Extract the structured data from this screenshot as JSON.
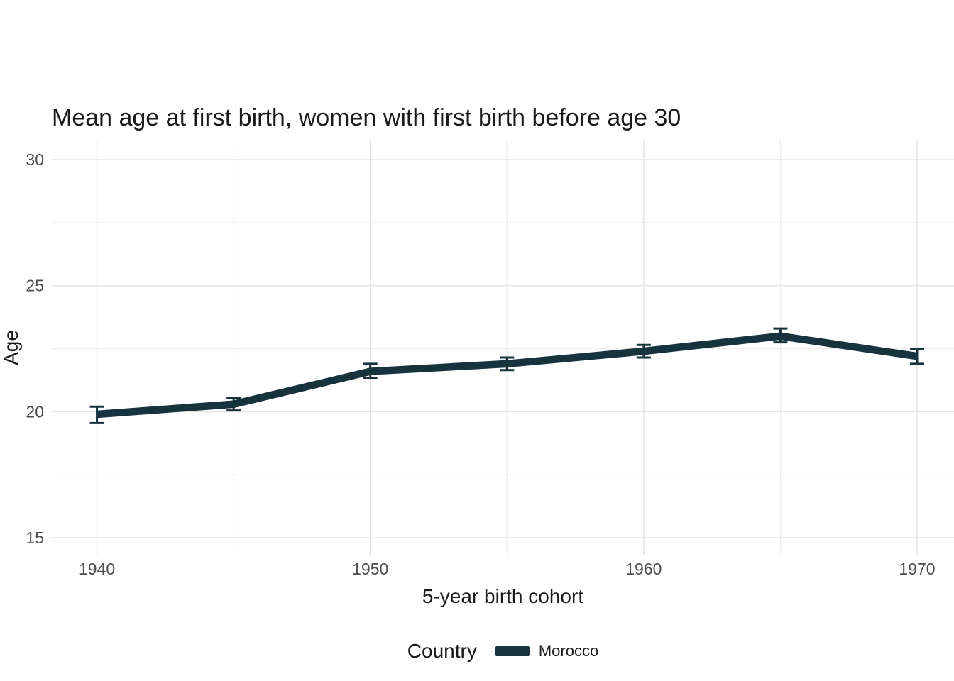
{
  "title": "Mean age at first birth, women with first birth before age 30",
  "axes": {
    "x_title": "5-year birth cohort",
    "y_title": "Age"
  },
  "legend": {
    "title": "Country",
    "items": [
      {
        "label": "Morocco",
        "color": "#17333e"
      }
    ]
  },
  "colors": {
    "series": "#17333e",
    "grid_major": "#e4e4e4",
    "grid_minor": "#ebebeb",
    "tick_label": "#4d4d4d",
    "background": "#ffffff"
  },
  "chart_data": {
    "type": "line",
    "title": "Mean age at first birth, women with first birth before age 30",
    "xlabel": "5-year birth cohort",
    "ylabel": "Age",
    "xlim": [
      1938.35,
      1971.35
    ],
    "ylim": [
      14.3,
      30.76
    ],
    "x_ticks_labeled": [
      1940,
      1950,
      1960,
      1970
    ],
    "x_ticks_all": [
      1940,
      1945,
      1950,
      1955,
      1960,
      1965,
      1970
    ],
    "y_ticks_major": [
      15,
      20,
      25,
      30
    ],
    "y_ticks_minor": [
      17.5,
      22.5,
      27.5
    ],
    "grid": true,
    "legend_position": "bottom",
    "series": [
      {
        "name": "Morocco",
        "color": "#17333e",
        "x": [
          1940,
          1945,
          1950,
          1955,
          1960,
          1965,
          1970
        ],
        "values": [
          19.9,
          20.3,
          21.6,
          21.9,
          22.4,
          23.0,
          22.2
        ],
        "ci_low": [
          19.55,
          20.05,
          21.35,
          21.65,
          22.15,
          22.75,
          21.9
        ],
        "ci_high": [
          20.2,
          20.55,
          21.9,
          22.15,
          22.65,
          23.3,
          22.5
        ]
      }
    ]
  }
}
